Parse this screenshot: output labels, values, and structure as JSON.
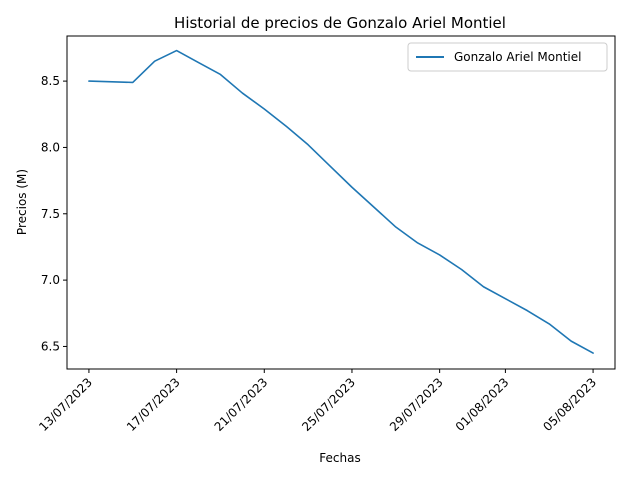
{
  "chart_data": {
    "type": "line",
    "title": "Historial de precios de Gonzalo Ariel Montiel",
    "xlabel": "Fechas",
    "ylabel": "Precios (M)",
    "x_ticks": [
      "13/07/2023",
      "17/07/2023",
      "21/07/2023",
      "25/07/2023",
      "29/07/2023",
      "01/08/2023",
      "05/08/2023"
    ],
    "y_ticks": [
      "6.5",
      "7.0",
      "7.5",
      "8.0",
      "8.5"
    ],
    "ylim": [
      6.33,
      8.84
    ],
    "xlim": [
      "12/07/2023",
      "06/08/2023"
    ],
    "legend_position": "upper right",
    "grid": false,
    "series": [
      {
        "name": "Gonzalo Ariel Montiel",
        "color": "#1f77b4",
        "points": [
          [
            "13/07/2023",
            8.5
          ],
          [
            "15/07/2023",
            8.49
          ],
          [
            "16/07/2023",
            8.65
          ],
          [
            "17/07/2023",
            8.73
          ],
          [
            "18/07/2023",
            8.64
          ],
          [
            "19/07/2023",
            8.55
          ],
          [
            "20/07/2023",
            8.41
          ],
          [
            "21/07/2023",
            8.29
          ],
          [
            "22/07/2023",
            8.16
          ],
          [
            "23/07/2023",
            8.02
          ],
          [
            "24/07/2023",
            7.86
          ],
          [
            "25/07/2023",
            7.7
          ],
          [
            "26/07/2023",
            7.55
          ],
          [
            "27/07/2023",
            7.4
          ],
          [
            "28/07/2023",
            7.28
          ],
          [
            "29/07/2023",
            7.19
          ],
          [
            "30/07/2023",
            7.08
          ],
          [
            "31/07/2023",
            6.95
          ],
          [
            "01/08/2023",
            6.86
          ],
          [
            "02/08/2023",
            6.77
          ],
          [
            "03/08/2023",
            6.67
          ],
          [
            "04/08/2023",
            6.54
          ],
          [
            "05/08/2023",
            6.45
          ]
        ]
      }
    ]
  }
}
